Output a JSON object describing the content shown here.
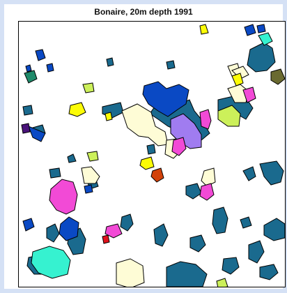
{
  "title": "Bonaire, 20m depth 1991",
  "palette": {
    "dark_blue": "#1a6a8e",
    "royal_blue": "#0a49c4",
    "cream": "#fefcd6",
    "magenta": "#f24ad6",
    "yellow_green": "#ccf05a",
    "yellow": "#fcfc06",
    "violet": "#a07cf0",
    "aqua": "#36f2d0",
    "green_teal": "#1f8a6a",
    "red_orange": "#d2420a",
    "purple": "#4a137a",
    "olive": "#6a6a30",
    "red": "#e0121c"
  }
}
